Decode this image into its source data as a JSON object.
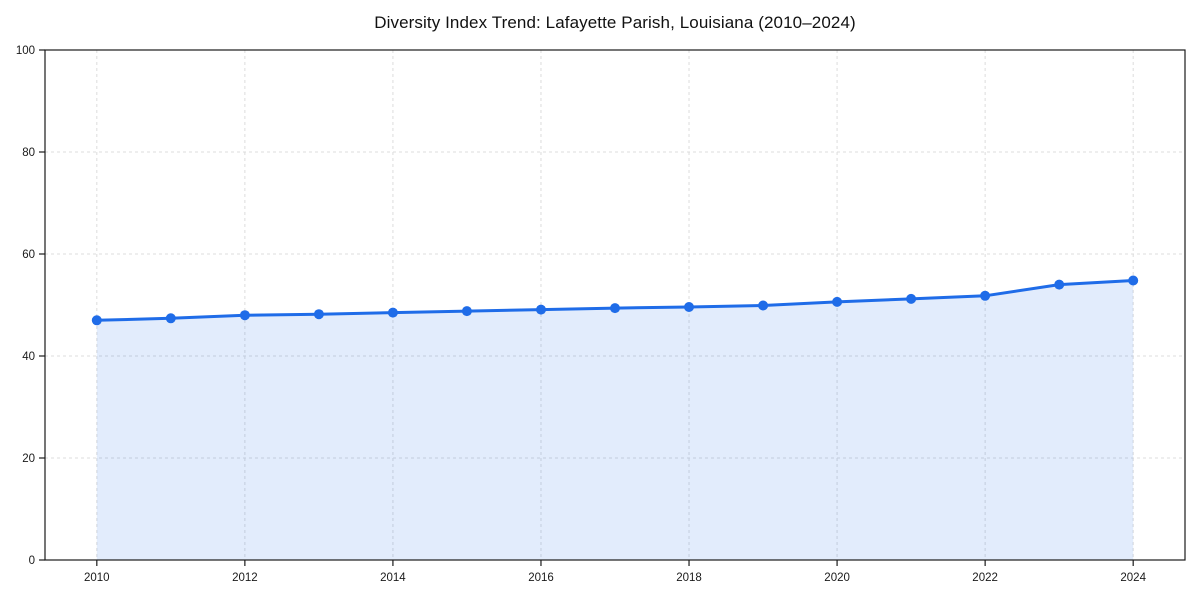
{
  "page": {
    "background_color": "#ffffff"
  },
  "chart_data": {
    "type": "line",
    "title": "Diversity Index Trend: Lafayette Parish, Louisiana (2010–2024)",
    "x": [
      2010,
      2011,
      2012,
      2013,
      2014,
      2015,
      2016,
      2017,
      2018,
      2019,
      2020,
      2021,
      2022,
      2023,
      2024
    ],
    "series": [
      {
        "name": "Diversity Index",
        "values": [
          47.0,
          47.4,
          48.0,
          48.2,
          48.5,
          48.8,
          49.1,
          49.4,
          49.6,
          49.9,
          50.6,
          51.2,
          51.8,
          54.0,
          54.8
        ]
      }
    ],
    "xlabel": "",
    "ylabel": "",
    "xlim": [
      2009.3,
      2024.7
    ],
    "ylim": [
      0,
      100
    ],
    "xticks": [
      2010,
      2012,
      2014,
      2016,
      2018,
      2020,
      2022,
      2024
    ],
    "yticks": [
      0,
      20,
      40,
      60,
      80,
      100
    ],
    "grid": true,
    "grid_style": "dashed",
    "legend": false,
    "line_color": "#1f6ce8",
    "marker_color": "#1f6ce8",
    "marker_shape": "circle",
    "fill_color": "rgba(31,108,232,0.13)",
    "grid_color": "#dcdcdc",
    "axis_color": "#1a1a1a",
    "tick_label_color": "#1a1a1a",
    "title_color": "#111111"
  }
}
